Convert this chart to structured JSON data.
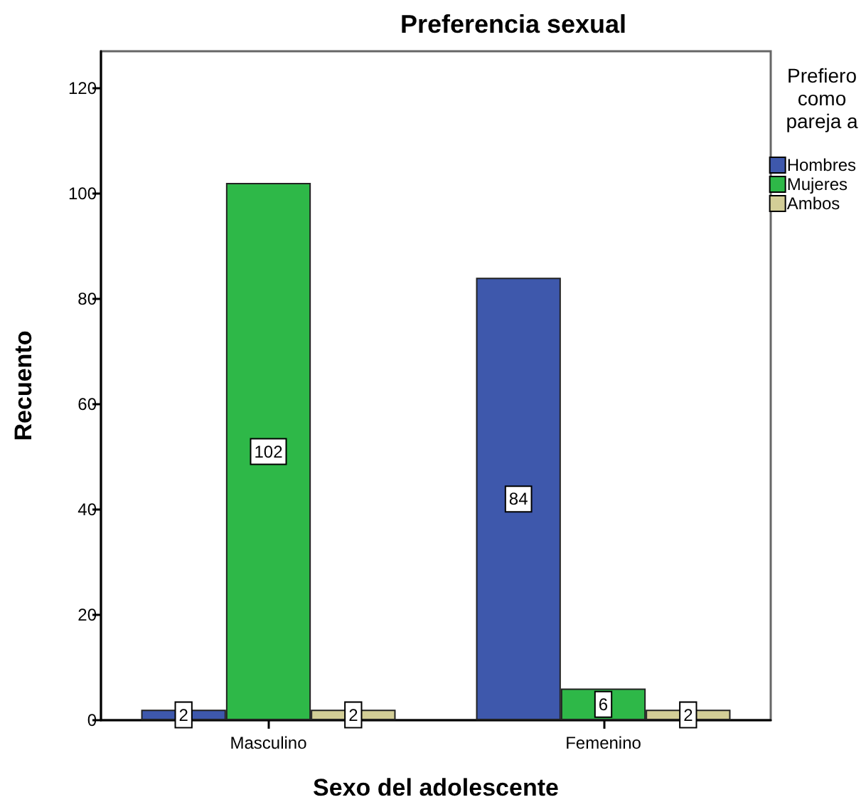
{
  "chart_data": {
    "type": "bar",
    "title": "Preferencia sexual",
    "xlabel": "Sexo del adolescente",
    "ylabel": "Recuento",
    "legend_title": "Prefiero\ncomo\npareja a",
    "categories": [
      "Masculino",
      "Femenino"
    ],
    "series": [
      {
        "name": "Hombres",
        "color": "#3e58ac",
        "values": [
          2,
          84
        ]
      },
      {
        "name": "Mujeres",
        "color": "#2eb848",
        "values": [
          102,
          6
        ]
      },
      {
        "name": "Ambos",
        "color": "#d3ce97",
        "values": [
          2,
          2
        ]
      }
    ],
    "ylim": [
      0,
      127
    ],
    "yticks": [
      0,
      20,
      40,
      60,
      80,
      100,
      120
    ],
    "grid": false,
    "legend": "right",
    "data_labels": true
  }
}
